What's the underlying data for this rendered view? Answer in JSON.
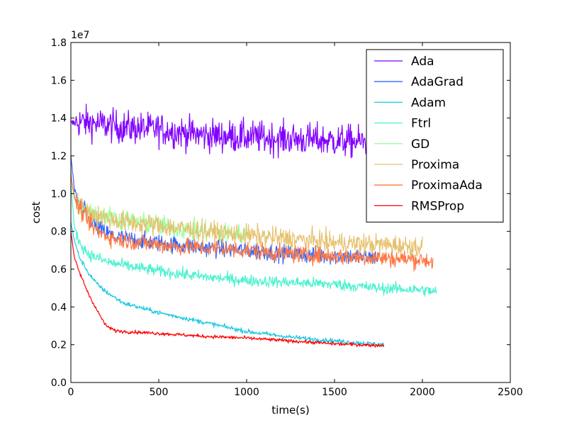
{
  "chart_data": {
    "type": "line",
    "title": "",
    "xlabel": "time(s)",
    "ylabel": "cost",
    "y_multiplier": "1e7",
    "xlim": [
      0,
      2500
    ],
    "ylim": [
      0.0,
      1.8
    ],
    "xticks": [
      0,
      500,
      1000,
      1500,
      2000,
      2500
    ],
    "xtick_labels": [
      "0",
      "500",
      "1000",
      "1500",
      "2000",
      "2500"
    ],
    "yticks": [
      0.0,
      0.2,
      0.4,
      0.6,
      0.8,
      1.0,
      1.2,
      1.4,
      1.6,
      1.8
    ],
    "ytick_labels": [
      "0.0",
      "0.2",
      "0.4",
      "0.6",
      "0.8",
      "1.0",
      "1.2",
      "1.4",
      "1.6",
      "1.8"
    ],
    "grid": false,
    "legend_position": "top-right",
    "series": [
      {
        "name": "Ada",
        "color": "#8000ff",
        "x": [
          0,
          50,
          150,
          300,
          500,
          750,
          1000,
          1250,
          1500,
          1750
        ],
        "y": [
          1.37,
          1.38,
          1.37,
          1.35,
          1.34,
          1.31,
          1.3,
          1.29,
          1.28,
          1.27
        ]
      },
      {
        "name": "AdaGrad",
        "color": "#3366ff",
        "x": [
          0,
          20,
          50,
          100,
          150,
          250,
          400,
          600,
          800,
          1000,
          1250,
          1500,
          1750
        ],
        "y": [
          1.2,
          1.02,
          0.94,
          0.88,
          0.82,
          0.77,
          0.75,
          0.73,
          0.71,
          0.7,
          0.68,
          0.67,
          0.66
        ]
      },
      {
        "name": "Adam",
        "color": "#1ac8e0",
        "x": [
          0,
          20,
          50,
          100,
          150,
          200,
          300,
          500,
          750,
          1000,
          1250,
          1500,
          1780
        ],
        "y": [
          0.85,
          0.75,
          0.66,
          0.58,
          0.52,
          0.48,
          0.42,
          0.37,
          0.32,
          0.27,
          0.24,
          0.22,
          0.2
        ]
      },
      {
        "name": "Ftrl",
        "color": "#4cf2ce",
        "x": [
          0,
          20,
          50,
          100,
          200,
          300,
          500,
          750,
          1000,
          1250,
          1500,
          1750,
          2000,
          2080
        ],
        "y": [
          1.05,
          0.82,
          0.74,
          0.68,
          0.64,
          0.62,
          0.59,
          0.56,
          0.54,
          0.53,
          0.52,
          0.5,
          0.49,
          0.48
        ]
      },
      {
        "name": "GD",
        "color": "#99ff99",
        "x": [
          0,
          20,
          50,
          100,
          200,
          300,
          500,
          750,
          1000
        ],
        "y": [
          1.1,
          0.98,
          0.93,
          0.9,
          0.88,
          0.86,
          0.83,
          0.8,
          0.78
        ]
      },
      {
        "name": "Proxima",
        "color": "#e6c270",
        "x": [
          0,
          20,
          50,
          100,
          200,
          300,
          500,
          750,
          1000,
          1250,
          1500,
          1750,
          2000
        ],
        "y": [
          1.1,
          0.98,
          0.93,
          0.9,
          0.87,
          0.85,
          0.83,
          0.8,
          0.78,
          0.76,
          0.74,
          0.73,
          0.72
        ]
      },
      {
        "name": "ProximaAda",
        "color": "#ff7845",
        "x": [
          0,
          20,
          50,
          100,
          150,
          250,
          400,
          600,
          800,
          1000,
          1250,
          1500,
          1750,
          2000,
          2060
        ],
        "y": [
          1.1,
          0.98,
          0.92,
          0.85,
          0.8,
          0.76,
          0.74,
          0.72,
          0.71,
          0.7,
          0.68,
          0.67,
          0.66,
          0.65,
          0.64
        ]
      },
      {
        "name": "RMSProp",
        "color": "#ff0000",
        "x": [
          0,
          20,
          50,
          100,
          150,
          200,
          250,
          300,
          500,
          750,
          1000,
          1250,
          1500,
          1780
        ],
        "y": [
          0.8,
          0.66,
          0.58,
          0.47,
          0.38,
          0.3,
          0.275,
          0.27,
          0.26,
          0.245,
          0.235,
          0.22,
          0.205,
          0.195
        ]
      }
    ]
  }
}
